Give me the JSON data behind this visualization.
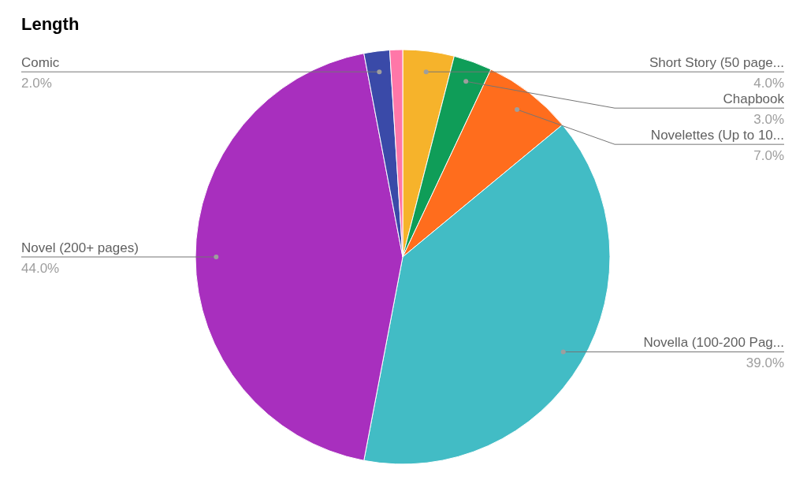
{
  "chart_data": {
    "type": "pie",
    "title": "Length",
    "categories": [
      "Short Story (50 page...",
      "Chapbook",
      "Novelettes (Up to 10...",
      "Novella (100-200 Pag...",
      "Novel (200+ pages)",
      "Comic",
      null
    ],
    "values": [
      4,
      3,
      7,
      39,
      44,
      2,
      1
    ],
    "value_labels": [
      "4.0%",
      "3.0%",
      "7.0%",
      "39.0%",
      "44.0%",
      "2.0%",
      null
    ],
    "colors": [
      "#f6b32b",
      "#0f9d58",
      "#ff6d1d",
      "#42bcc5",
      "#a82fbe",
      "#3a4aa8",
      "#ff77a8"
    ]
  }
}
